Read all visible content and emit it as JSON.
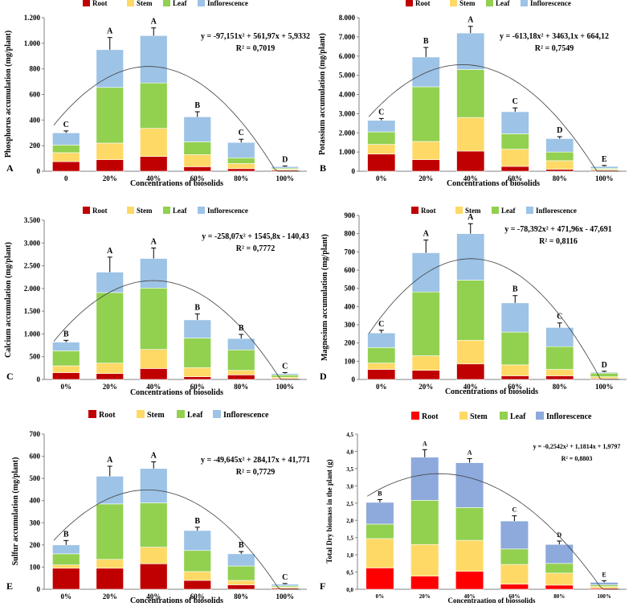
{
  "figure": {
    "series_names": [
      "Root",
      "Stem",
      "Leaf",
      "Inflorescence"
    ],
    "colors": {
      "root": "#c00000",
      "stem": "#ffd966",
      "leaf": "#92d050",
      "inflorescence": "#9dc3e6",
      "inflorescence_alt": "#8ea9db",
      "root_alt": "#ff0000",
      "axis": "#808080",
      "trend": "#404040",
      "text": "#000000"
    }
  },
  "chart_data": [
    {
      "panel": "A",
      "type": "bar",
      "stacked": true,
      "title": "",
      "xlabel": "Concentrations of biosolids",
      "ylabel": "Phosphorus accumulation (mg/plant)",
      "categories": [
        "0",
        "20%",
        "40%",
        "60%",
        "80%",
        "100%"
      ],
      "series": [
        {
          "name": "Root",
          "values": [
            75,
            90,
            115,
            35,
            20,
            8
          ]
        },
        {
          "name": "Stem",
          "values": [
            70,
            130,
            220,
            95,
            40,
            8
          ]
        },
        {
          "name": "Leaf",
          "values": [
            60,
            435,
            355,
            100,
            45,
            8
          ]
        },
        {
          "name": "Inflorescence",
          "values": [
            95,
            295,
            370,
            195,
            120,
            12
          ]
        }
      ],
      "error": [
        15,
        95,
        60,
        40,
        25,
        5
      ],
      "letters": [
        "C",
        "A",
        "A",
        "B",
        "C",
        "D"
      ],
      "ylim": [
        0,
        1200
      ],
      "yticks": [
        0,
        200,
        400,
        600,
        800,
        1000,
        1200
      ],
      "ytick_labels": [
        "0",
        "200",
        "400",
        "600",
        "800",
        "1.000",
        "1.200"
      ],
      "trend": {
        "a": -97.151,
        "b": 561.97,
        "c": 5.9332
      },
      "equation": "y = -97,151x² + 561,97x + 5,9332",
      "r2": "R² = 0,7019",
      "legend_position": "top"
    },
    {
      "panel": "B",
      "type": "bar",
      "stacked": true,
      "title": "",
      "xlabel": "Concentrations of biosolids",
      "ylabel": "Potassium accumulation (mg/plant)",
      "categories": [
        "0%",
        "20%",
        "40%",
        "60%",
        "80%",
        "100%"
      ],
      "series": [
        {
          "name": "Root",
          "values": [
            900,
            600,
            1050,
            250,
            100,
            50
          ]
        },
        {
          "name": "Stem",
          "values": [
            500,
            950,
            1750,
            900,
            450,
            50
          ]
        },
        {
          "name": "Leaf",
          "values": [
            650,
            2850,
            2500,
            800,
            450,
            50
          ]
        },
        {
          "name": "Inflorescence",
          "values": [
            600,
            1550,
            1900,
            1150,
            700,
            100
          ]
        }
      ],
      "error": [
        100,
        500,
        350,
        200,
        100,
        50
      ],
      "letters": [
        "C",
        "B",
        "A",
        "C",
        "D",
        "E"
      ],
      "ylim": [
        0,
        8000
      ],
      "yticks": [
        0,
        1000,
        2000,
        3000,
        4000,
        5000,
        6000,
        7000,
        8000
      ],
      "ytick_labels": [
        "0",
        "1.000",
        "2.000",
        "3.000",
        "4.000",
        "5.000",
        "6.000",
        "7.000",
        "8.000"
      ],
      "trend": {
        "a": -613.18,
        "b": 3463.1,
        "c": 664.12
      },
      "equation": "y = -613,18x² + 3463,1x + 664,12",
      "r2": "R² = 0,7549",
      "legend_position": "top"
    },
    {
      "panel": "C",
      "type": "bar",
      "stacked": true,
      "title": "",
      "xlabel": "Concentrations of biosolids",
      "ylabel": "Calcium accumulation (mg/plant)",
      "categories": [
        "0%",
        "20%",
        "40%",
        "60%",
        "80%",
        "100%"
      ],
      "series": [
        {
          "name": "Root",
          "values": [
            150,
            130,
            240,
            60,
            100,
            20
          ]
        },
        {
          "name": "Stem",
          "values": [
            150,
            230,
            420,
            200,
            100,
            30
          ]
        },
        {
          "name": "Leaf",
          "values": [
            330,
            1550,
            1350,
            650,
            450,
            50
          ]
        },
        {
          "name": "Inflorescence",
          "values": [
            190,
            450,
            650,
            400,
            250,
            30
          ]
        }
      ],
      "error": [
        40,
        330,
        230,
        130,
        90,
        20
      ],
      "letters": [
        "B",
        "A",
        "A",
        "B",
        "B",
        "C"
      ],
      "ylim": [
        0,
        3500
      ],
      "yticks": [
        0,
        500,
        1000,
        1500,
        2000,
        2500,
        3000,
        3500
      ],
      "ytick_labels": [
        "0",
        "500",
        "1.000",
        "1.500",
        "2.000",
        "2.500",
        "3.000",
        "3.500"
      ],
      "trend": {
        "a": -258.07,
        "b": 1545.8,
        "c": -140.43
      },
      "equation": "y = -258,07x² + 1545,8x - 140,43",
      "r2": "R² = 0,7772",
      "legend_position": "top"
    },
    {
      "panel": "D",
      "type": "bar",
      "stacked": true,
      "title": "",
      "xlabel": "Concentrations  of biosolids",
      "ylabel": "Magnesium accumulation  (mg/plant)",
      "categories": [
        "0%",
        "20%",
        "40%",
        "60%",
        "80%",
        "100%"
      ],
      "series": [
        {
          "name": "Root",
          "values": [
            55,
            50,
            85,
            20,
            20,
            5
          ]
        },
        {
          "name": "Stem",
          "values": [
            35,
            80,
            130,
            60,
            35,
            10
          ]
        },
        {
          "name": "Leaf",
          "values": [
            85,
            350,
            330,
            180,
            125,
            20
          ]
        },
        {
          "name": "Inflorescence",
          "values": [
            80,
            215,
            255,
            160,
            105,
            5
          ]
        }
      ],
      "error": [
        15,
        70,
        55,
        40,
        25,
        5
      ],
      "letters": [
        "C",
        "A",
        "A",
        "B",
        "C",
        "D"
      ],
      "ylim": [
        0,
        900
      ],
      "yticks": [
        0,
        100,
        200,
        300,
        400,
        500,
        600,
        700,
        800,
        900
      ],
      "ytick_labels": [
        "0",
        "100",
        "200",
        "300",
        "400",
        "500",
        "600",
        "700",
        "800",
        "900"
      ],
      "trend": {
        "a": -78.392,
        "b": 471.96,
        "c": -47.691
      },
      "equation": "y = -78,392x² + 471,96x - 47,691",
      "r2": "R² = 0,8116",
      "legend_position": "top"
    },
    {
      "panel": "E",
      "type": "bar",
      "stacked": true,
      "title": "",
      "xlabel": "Concentrations of biosolids",
      "ylabel": "Sulfur accumulation (mg/plant)",
      "categories": [
        "0%",
        "20%",
        "40%",
        "60%",
        "80%",
        "100%"
      ],
      "series": [
        {
          "name": "Root",
          "values": [
            95,
            95,
            115,
            40,
            20,
            5
          ]
        },
        {
          "name": "Stem",
          "values": [
            15,
            40,
            75,
            40,
            20,
            5
          ]
        },
        {
          "name": "Leaf",
          "values": [
            50,
            250,
            200,
            95,
            65,
            5
          ]
        },
        {
          "name": "Inflorescence",
          "values": [
            40,
            125,
            155,
            90,
            55,
            8
          ]
        }
      ],
      "error": [
        20,
        45,
        30,
        15,
        10,
        3
      ],
      "letters": [
        "B",
        "A",
        "A",
        "B",
        "B",
        "C"
      ],
      "ylim": [
        0,
        700
      ],
      "yticks": [
        0,
        100,
        200,
        300,
        400,
        500,
        600,
        700
      ],
      "ytick_labels": [
        "0",
        "100",
        "200",
        "300",
        "400",
        "500",
        "600",
        "700"
      ],
      "trend": {
        "a": -49.645,
        "b": 284.17,
        "c": 41.771
      },
      "equation": "y = -49,645x² + 284,17x + 41,771",
      "r2": "R² = 0,7729",
      "legend_position": "top-left"
    },
    {
      "panel": "F",
      "type": "bar",
      "stacked": true,
      "title": "",
      "xlabel": "Concentraation of biossolids",
      "ylabel": "Total Dry biomass in the plant (g)",
      "categories": [
        "0%",
        "20%",
        "40%",
        "60%",
        "80%",
        "100%"
      ],
      "series": [
        {
          "name": "Root",
          "values": [
            0.62,
            0.38,
            0.52,
            0.15,
            0.12,
            0.03
          ]
        },
        {
          "name": "Stem",
          "values": [
            0.85,
            0.92,
            0.9,
            0.57,
            0.35,
            0.05
          ]
        },
        {
          "name": "Leaf",
          "values": [
            0.42,
            1.28,
            0.95,
            0.45,
            0.28,
            0.05
          ]
        },
        {
          "name": "Inflorescence",
          "values": [
            0.63,
            1.25,
            1.3,
            0.81,
            0.55,
            0.07
          ]
        }
      ],
      "error": [
        0.08,
        0.22,
        0.12,
        0.15,
        0.1,
        0.05
      ],
      "letters": [
        "B",
        "A",
        "A",
        "C",
        "D",
        "E"
      ],
      "ylim": [
        0,
        4.5
      ],
      "yticks": [
        0,
        0.5,
        1,
        1.5,
        2,
        2.5,
        3,
        3.5,
        4,
        4.5
      ],
      "ytick_labels": [
        "0,0",
        "0,5",
        "1,0",
        "1,5",
        "2,0",
        "2,5",
        "3,0",
        "3,5",
        "4,0",
        "4,5"
      ],
      "trend": {
        "a": -0.2542,
        "b": 1.1814,
        "c": 1.9797
      },
      "equation": "y = -0,2542x² + 1,1814x + 1,9797",
      "r2": "R² = 0,8803",
      "legend_position": "top-right"
    }
  ]
}
